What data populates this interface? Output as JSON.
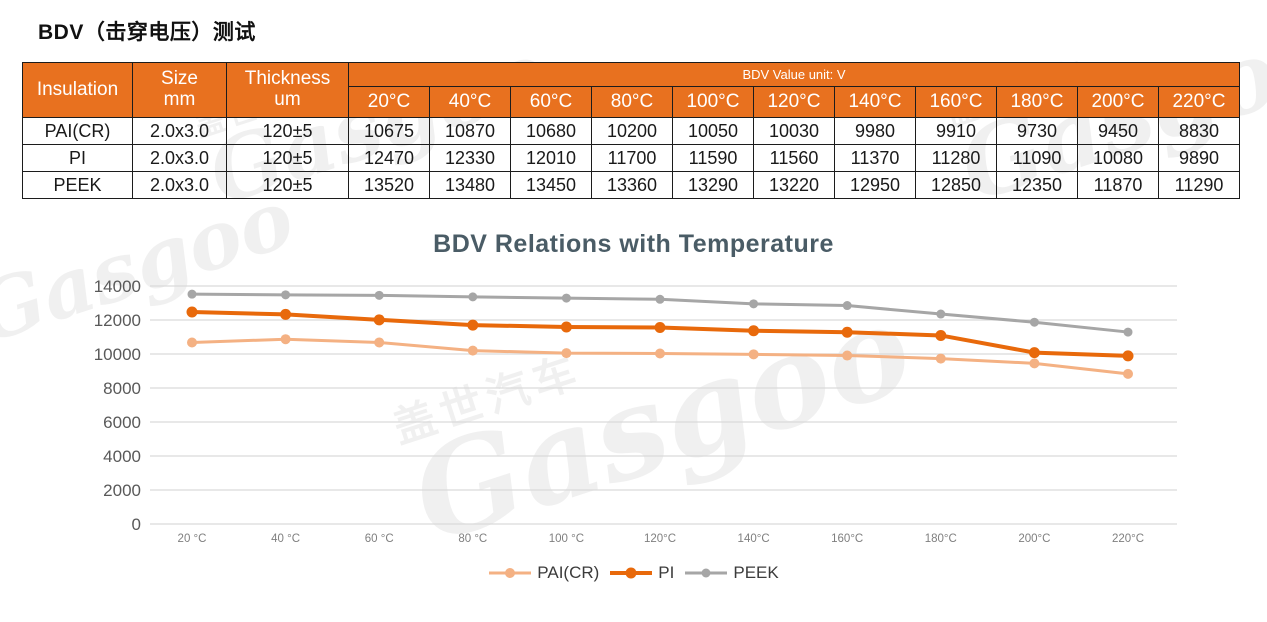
{
  "page": {
    "title": "BDV（击穿电压）测试"
  },
  "watermark": {
    "cn": "盖世汽车",
    "en": "Gasgoo"
  },
  "table": {
    "headers": {
      "insulation": "Insulation",
      "size_lines": [
        "Size",
        "mm"
      ],
      "thickness_lines": [
        "Thickness",
        "um"
      ],
      "bdv_unit": "BDV Value unit: V"
    },
    "temps": [
      "20°C",
      "40°C",
      "60°C",
      "80°C",
      "100°C",
      "120°C",
      "140°C",
      "160°C",
      "180°C",
      "200°C",
      "220°C"
    ],
    "rows": [
      {
        "insulation": "PAI(CR)",
        "size": "2.0x3.0",
        "thickness": "120±5",
        "values": [
          "10675",
          "10870",
          "10680",
          "10200",
          "10050",
          "10030",
          "9980",
          "9910",
          "9730",
          "9450",
          "8830"
        ]
      },
      {
        "insulation": "PI",
        "size": "2.0x3.0",
        "thickness": "120±5",
        "values": [
          "12470",
          "12330",
          "12010",
          "11700",
          "11590",
          "11560",
          "11370",
          "11280",
          "11090",
          "10080",
          "9890"
        ]
      },
      {
        "insulation": "PEEK",
        "size": "2.0x3.0",
        "thickness": "120±5",
        "values": [
          "13520",
          "13480",
          "13450",
          "13360",
          "13290",
          "13220",
          "12950",
          "12850",
          "12350",
          "11870",
          "11290"
        ]
      }
    ]
  },
  "chart_data": {
    "type": "line",
    "title": "BDV Relations with Temperature",
    "categories": [
      "20 °C",
      "40 °C",
      "60 °C",
      "80 °C",
      "100 °C",
      "120°C",
      "140°C",
      "160°C",
      "180°C",
      "200°C",
      "220°C"
    ],
    "series": [
      {
        "name": "PAI(CR)",
        "color": "#f4b183",
        "values": [
          10675,
          10870,
          10680,
          10200,
          10050,
          10030,
          9980,
          9910,
          9730,
          9450,
          8830
        ]
      },
      {
        "name": "PI",
        "color": "#e8690b",
        "values": [
          12470,
          12330,
          12010,
          11700,
          11590,
          11560,
          11370,
          11280,
          11090,
          10080,
          9890
        ]
      },
      {
        "name": "PEEK",
        "color": "#a6a6a6",
        "values": [
          13520,
          13480,
          13450,
          13360,
          13290,
          13220,
          12950,
          12850,
          12350,
          11870,
          11290
        ]
      }
    ],
    "xlabel": "",
    "ylabel": "",
    "ylim": [
      0,
      14000
    ],
    "ytick_step": 2000,
    "yticks": [
      0,
      2000,
      4000,
      6000,
      8000,
      10000,
      12000,
      14000
    ],
    "grid": true,
    "legend_position": "bottom",
    "colors": {
      "gridline": "#d9d9d9",
      "ytick_text": "#595959",
      "xtick_text": "#7f7f7f",
      "title_text": "#4a5c66",
      "header_bg": "#e8711f"
    }
  }
}
